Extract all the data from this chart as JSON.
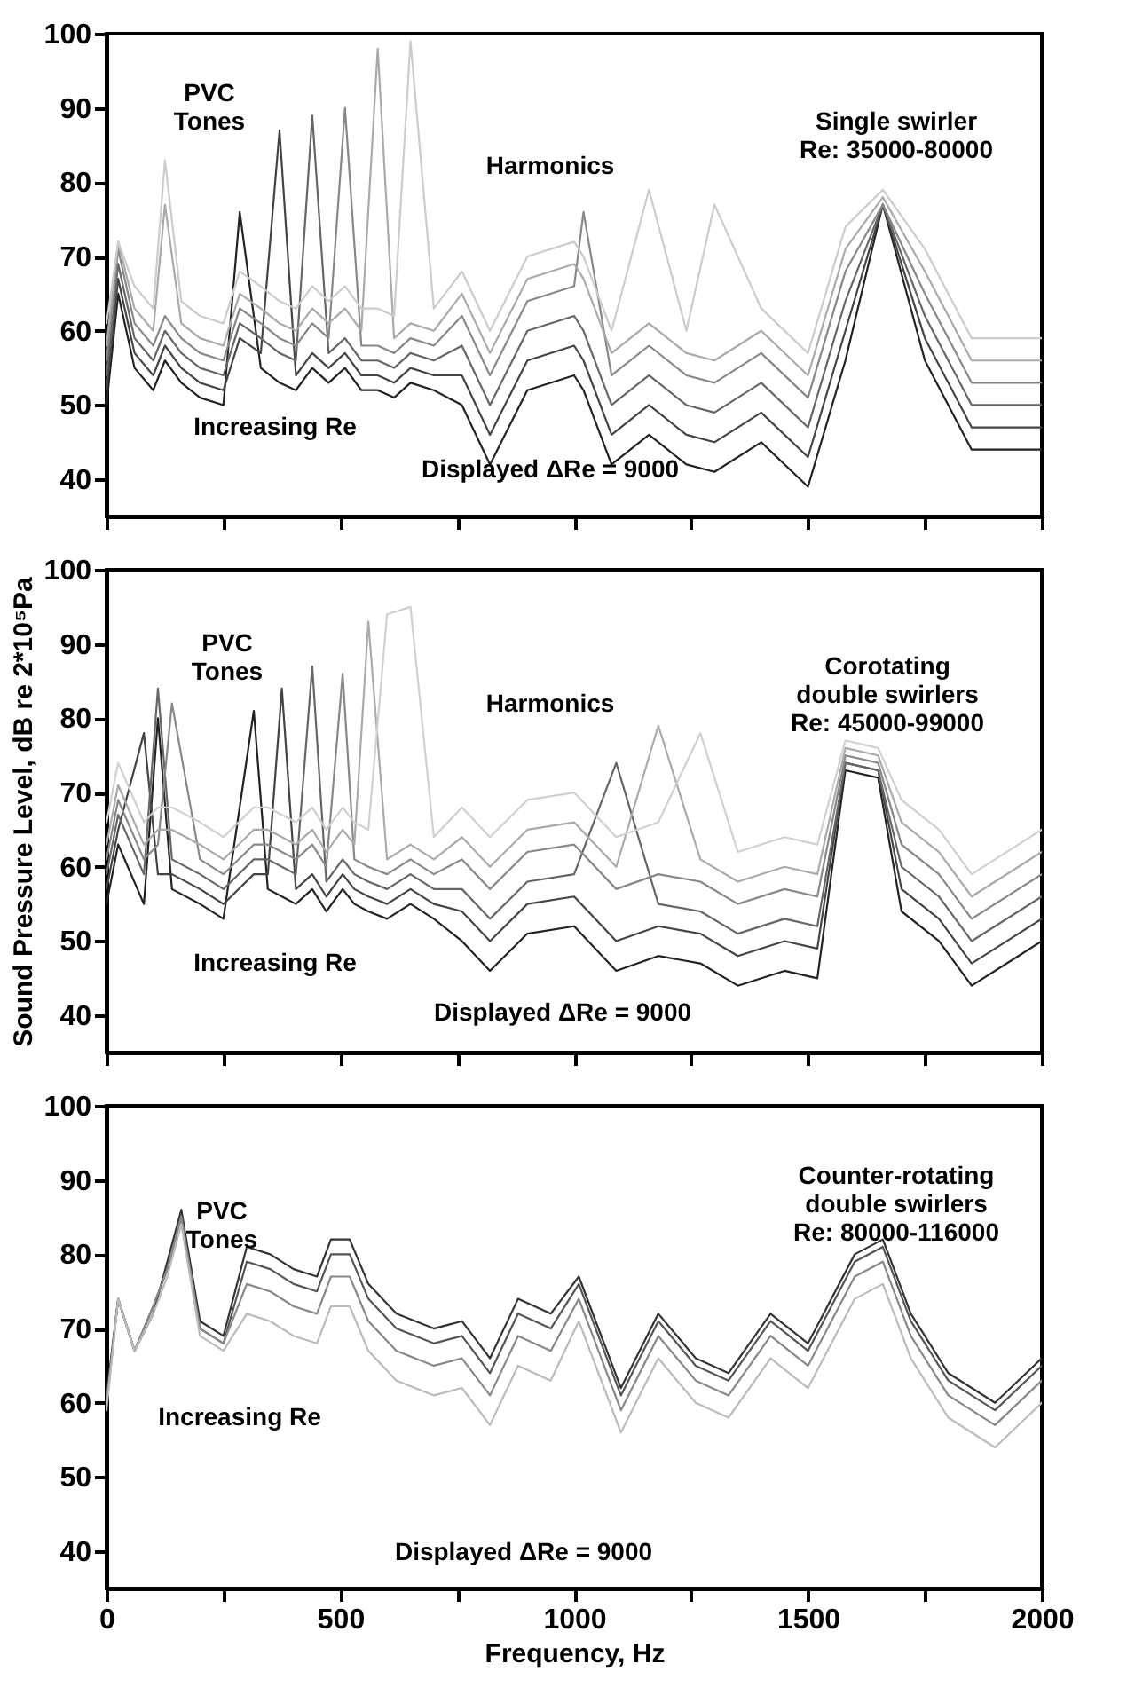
{
  "chart_data": [
    {
      "type": "line",
      "tick_labels": "y",
      "grid": false,
      "xlim": [
        0,
        2000
      ],
      "xticks": [
        0,
        250,
        500,
        750,
        1000,
        1250,
        1500,
        1750,
        2000
      ],
      "ylim": [
        35,
        100
      ],
      "yticks": [
        40,
        50,
        60,
        70,
        80,
        90,
        100
      ],
      "x": [
        0,
        25,
        60,
        100,
        125,
        160,
        200,
        250,
        285,
        330,
        370,
        405,
        440,
        475,
        510,
        545,
        580,
        615,
        650,
        700,
        760,
        820,
        900,
        1000,
        1020,
        1080,
        1160,
        1240,
        1300,
        1400,
        1500,
        1580,
        1660,
        1750,
        1850,
        2000
      ],
      "series": [
        {
          "color": "#222222",
          "values": [
            50,
            65,
            55,
            52,
            56,
            53,
            51,
            50,
            76,
            55,
            53,
            52,
            55,
            53,
            55,
            52,
            52,
            51,
            53,
            52,
            50,
            42,
            52,
            54,
            52,
            42,
            46,
            42,
            41,
            45,
            39,
            56,
            77,
            56,
            44,
            44
          ]
        },
        {
          "color": "#444444",
          "values": [
            52,
            67,
            57,
            54,
            58,
            55,
            53,
            52,
            59,
            57,
            87,
            54,
            57,
            55,
            57,
            54,
            54,
            53,
            55,
            54,
            54,
            46,
            56,
            58,
            56,
            46,
            50,
            46,
            45,
            49,
            43,
            60,
            77,
            59,
            47,
            47
          ]
        },
        {
          "color": "#666666",
          "values": [
            54,
            69,
            59,
            56,
            60,
            57,
            55,
            54,
            61,
            59,
            57,
            56,
            89,
            57,
            59,
            56,
            56,
            55,
            57,
            56,
            58,
            50,
            60,
            62,
            60,
            50,
            54,
            50,
            49,
            53,
            47,
            64,
            77,
            62,
            50,
            50
          ]
        },
        {
          "color": "#888888",
          "values": [
            56,
            71,
            61,
            58,
            62,
            59,
            57,
            56,
            63,
            61,
            59,
            58,
            61,
            59,
            90,
            58,
            58,
            57,
            59,
            58,
            62,
            54,
            64,
            66,
            76,
            54,
            58,
            54,
            53,
            57,
            51,
            68,
            77,
            65,
            53,
            53
          ]
        },
        {
          "color": "#aaaaaa",
          "values": [
            58,
            72,
            63,
            60,
            77,
            61,
            59,
            58,
            65,
            63,
            61,
            60,
            63,
            61,
            63,
            60,
            98,
            59,
            61,
            60,
            65,
            57,
            67,
            69,
            67,
            57,
            61,
            57,
            56,
            60,
            54,
            71,
            78,
            68,
            56,
            56
          ]
        },
        {
          "color": "#cccccc",
          "values": [
            61,
            72,
            66,
            63,
            83,
            64,
            62,
            61,
            68,
            66,
            64,
            63,
            66,
            64,
            66,
            63,
            63,
            62,
            99,
            63,
            68,
            60,
            70,
            72,
            70,
            60,
            79,
            60,
            77,
            63,
            57,
            74,
            79,
            71,
            59,
            59
          ]
        }
      ],
      "annotations": [
        "PVC\nTones",
        "Single swirler\nRe: 35000-80000",
        "Harmonics",
        "Increasing Re",
        "Displayed ΔRe = 9000"
      ]
    },
    {
      "type": "line",
      "tick_labels": "y",
      "grid": false,
      "ylabel": "Sound Pressure Level, dB re 2*10⁵Pa",
      "xlim": [
        0,
        2000
      ],
      "xticks": [
        0,
        250,
        500,
        750,
        1000,
        1250,
        1500,
        1750,
        2000
      ],
      "ylim": [
        35,
        100
      ],
      "yticks": [
        40,
        50,
        60,
        70,
        80,
        90,
        100
      ],
      "x": [
        0,
        25,
        80,
        110,
        140,
        200,
        250,
        315,
        345,
        375,
        405,
        440,
        470,
        505,
        530,
        560,
        600,
        650,
        700,
        760,
        820,
        900,
        1000,
        1090,
        1180,
        1270,
        1350,
        1450,
        1520,
        1580,
        1650,
        1700,
        1780,
        1850,
        1950,
        2000
      ],
      "series": [
        {
          "color": "#222222",
          "values": [
            55,
            63,
            55,
            80,
            57,
            55,
            53,
            81,
            57,
            56,
            55,
            57,
            54,
            57,
            55,
            54,
            53,
            55,
            53,
            50,
            46,
            51,
            52,
            46,
            48,
            47,
            44,
            46,
            45,
            73,
            72,
            54,
            50,
            44,
            48,
            50
          ]
        },
        {
          "color": "#444444",
          "values": [
            57,
            65,
            78,
            59,
            59,
            57,
            55,
            59,
            59,
            84,
            57,
            59,
            56,
            59,
            57,
            56,
            55,
            57,
            55,
            54,
            50,
            55,
            56,
            50,
            52,
            51,
            48,
            50,
            49,
            74,
            73,
            57,
            53,
            47,
            51,
            53
          ]
        },
        {
          "color": "#666666",
          "values": [
            59,
            67,
            59,
            84,
            61,
            59,
            57,
            61,
            61,
            60,
            59,
            87,
            58,
            61,
            59,
            58,
            57,
            59,
            57,
            57,
            53,
            58,
            59,
            74,
            55,
            54,
            51,
            53,
            52,
            74,
            73,
            60,
            56,
            50,
            54,
            56
          ]
        },
        {
          "color": "#888888",
          "values": [
            61,
            69,
            61,
            63,
            82,
            61,
            59,
            63,
            63,
            62,
            61,
            63,
            60,
            86,
            61,
            60,
            59,
            61,
            59,
            61,
            57,
            62,
            63,
            57,
            59,
            58,
            55,
            57,
            56,
            75,
            74,
            63,
            59,
            53,
            57,
            59
          ]
        },
        {
          "color": "#aaaaaa",
          "values": [
            63,
            71,
            63,
            65,
            65,
            63,
            61,
            65,
            65,
            64,
            63,
            65,
            62,
            65,
            63,
            93,
            61,
            63,
            61,
            64,
            60,
            65,
            66,
            60,
            79,
            61,
            58,
            60,
            59,
            76,
            75,
            66,
            62,
            56,
            60,
            62
          ]
        },
        {
          "color": "#d0d0d0",
          "values": [
            66,
            74,
            66,
            68,
            68,
            66,
            64,
            68,
            68,
            67,
            66,
            68,
            65,
            68,
            66,
            65,
            94,
            95,
            64,
            68,
            64,
            69,
            70,
            64,
            66,
            78,
            62,
            64,
            63,
            77,
            76,
            69,
            65,
            59,
            63,
            65
          ]
        }
      ],
      "annotations": [
        "PVC\nTones",
        "Corotating\ndouble swirlers\nRe: 45000-99000",
        "Harmonics",
        "Increasing Re",
        "Displayed ΔRe = 9000"
      ]
    },
    {
      "type": "line",
      "grid": false,
      "xlabel": "Frequency, Hz",
      "xlim": [
        0,
        2000
      ],
      "xticks": [
        0,
        {
          "value": 250,
          "label": null
        },
        500,
        {
          "value": 750,
          "label": null
        },
        1000,
        {
          "value": 1250,
          "label": null
        },
        1500,
        {
          "value": 1750,
          "label": null
        },
        2000
      ],
      "ylim": [
        35,
        100
      ],
      "yticks": [
        40,
        50,
        60,
        70,
        80,
        90,
        100
      ],
      "x": [
        0,
        25,
        60,
        100,
        130,
        160,
        200,
        250,
        300,
        350,
        400,
        450,
        480,
        520,
        560,
        620,
        700,
        760,
        820,
        880,
        950,
        1010,
        1100,
        1180,
        1260,
        1330,
        1420,
        1500,
        1600,
        1660,
        1720,
        1800,
        1900,
        2000
      ],
      "series": [
        {
          "color": "#333333",
          "values": [
            61,
            74,
            67,
            72,
            79,
            86,
            71,
            69,
            81,
            80,
            78,
            77,
            82,
            82,
            76,
            72,
            70,
            71,
            66,
            74,
            72,
            77,
            62,
            72,
            66,
            64,
            72,
            68,
            80,
            82,
            72,
            64,
            60,
            66
          ]
        },
        {
          "color": "#555555",
          "values": [
            60,
            74,
            67,
            73,
            78,
            85,
            70,
            68,
            79,
            78,
            76,
            75,
            80,
            80,
            74,
            70,
            68,
            69,
            64,
            72,
            70,
            76,
            61,
            71,
            65,
            63,
            71,
            67,
            79,
            81,
            71,
            63,
            59,
            65
          ]
        },
        {
          "color": "#888888",
          "values": [
            60,
            74,
            67,
            73,
            78,
            85,
            70,
            68,
            76,
            75,
            73,
            72,
            77,
            77,
            71,
            67,
            65,
            66,
            61,
            69,
            67,
            74,
            59,
            69,
            63,
            61,
            69,
            65,
            77,
            79,
            69,
            61,
            57,
            63
          ]
        },
        {
          "color": "#bbbbbb",
          "values": [
            59,
            74,
            67,
            72,
            77,
            84,
            69,
            67,
            72,
            71,
            69,
            68,
            73,
            73,
            67,
            63,
            61,
            62,
            57,
            65,
            63,
            71,
            56,
            66,
            60,
            58,
            66,
            62,
            74,
            76,
            66,
            58,
            54,
            60
          ]
        }
      ],
      "annotations": [
        "PVC\nTones",
        "Counter-rotating\ndouble swirlers\nRe: 80000-116000",
        "Increasing Re",
        "Displayed ΔRe = 9000"
      ]
    }
  ]
}
